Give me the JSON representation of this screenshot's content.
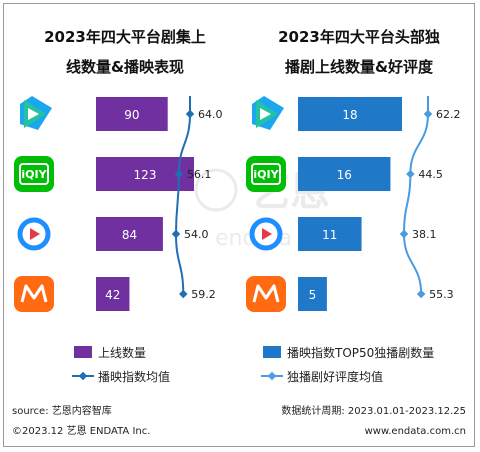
{
  "chart_data": [
    {
      "type": "bar",
      "title_lines": [
        "2023年四大平台剧集上",
        "线数量&播映表现"
      ],
      "categories": [
        "腾讯视频",
        "爱奇艺",
        "优酷",
        "芒果TV"
      ],
      "series": [
        {
          "name": "上线数量",
          "kind": "bar",
          "values": [
            90,
            123,
            84,
            42
          ],
          "color": "#7030a0"
        },
        {
          "name": "播映指数均值",
          "kind": "line",
          "values": [
            64.0,
            56.1,
            54.0,
            59.2
          ],
          "labels": [
            "64.0",
            "56.1",
            "54.0",
            "59.2"
          ],
          "color": "#1f6fb5"
        }
      ]
    },
    {
      "type": "bar",
      "title_lines": [
        "2023年四大平台头部独",
        "播剧上线数量&好评度"
      ],
      "categories": [
        "腾讯视频",
        "爱奇艺",
        "优酷",
        "芒果TV"
      ],
      "series": [
        {
          "name": "播映指数TOP50独播剧数量",
          "kind": "bar",
          "values": [
            18,
            16,
            11,
            5
          ],
          "color": "#1f78c8"
        },
        {
          "name": "独播剧好评度均值",
          "kind": "line",
          "values": [
            62.2,
            44.5,
            38.1,
            55.3
          ],
          "labels": [
            "62.2",
            "44.5",
            "38.1",
            "55.3"
          ],
          "color": "#4a9be0"
        }
      ]
    }
  ],
  "platforms": [
    {
      "name": "tencent",
      "color": "#25c2a0"
    },
    {
      "name": "iqiyi",
      "color": "#00be06",
      "logo_text": "iQIY"
    },
    {
      "name": "youku",
      "color": "#1e8fff"
    },
    {
      "name": "mango",
      "color": "#ff6a13"
    }
  ],
  "watermark": {
    "brand": "艺恩",
    "sub": "endata"
  },
  "footer": {
    "source": "source: 艺恩内容智库",
    "copyright": "©2023.12 艺恩 ENDATA Inc.",
    "period": "数据统计周期: 2023.01.01-2023.12.25",
    "url": "www.endata.com.cn"
  }
}
